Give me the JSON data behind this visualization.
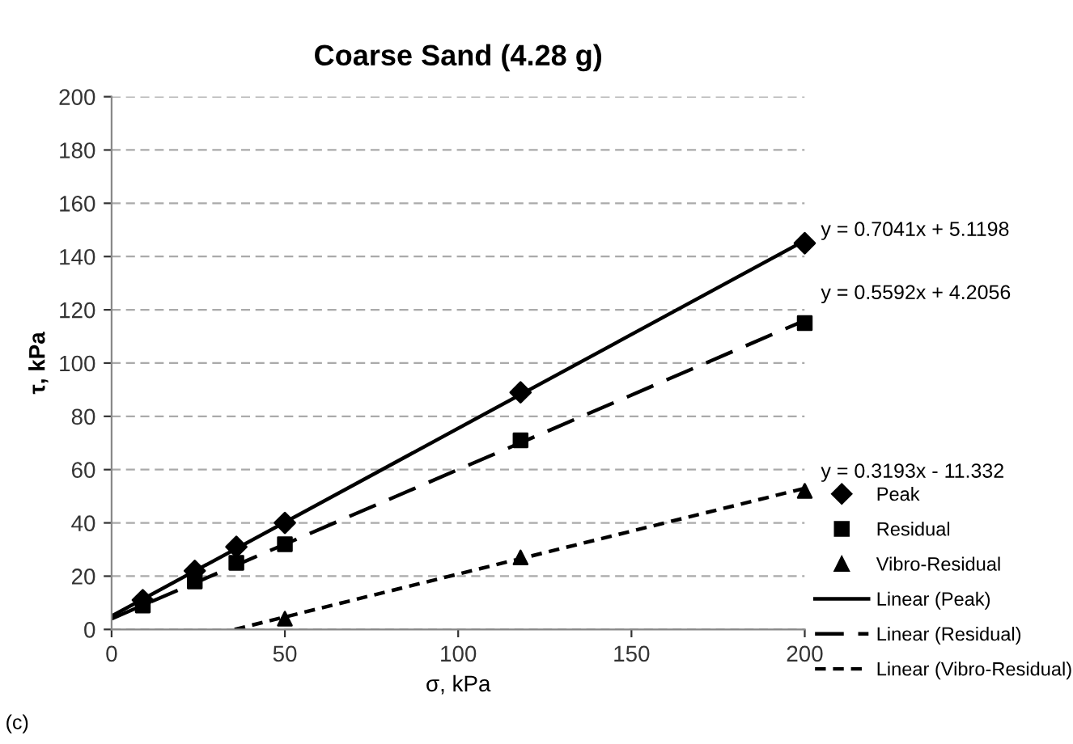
{
  "chart_data": {
    "type": "scatter",
    "title": "Coarse Sand (4.28 g)",
    "xlabel": "σ, kPa",
    "ylabel": "τ, kPa",
    "xlim": [
      0,
      200
    ],
    "xticks": [
      0,
      50,
      100,
      150,
      200
    ],
    "ylim": [
      0,
      200
    ],
    "yticks": [
      0,
      20,
      40,
      60,
      80,
      100,
      120,
      140,
      160,
      180,
      200
    ],
    "grid": "y",
    "legend": "right",
    "series": [
      {
        "name": "Peak",
        "marker": "diamond",
        "color": "#000000",
        "x": [
          9,
          24,
          36,
          50,
          118,
          200
        ],
        "values": [
          11,
          22,
          31,
          40,
          89,
          145
        ]
      },
      {
        "name": "Residual",
        "marker": "square",
        "color": "#000000",
        "x": [
          9,
          24,
          36,
          50,
          118,
          200
        ],
        "values": [
          9,
          18,
          25,
          32,
          71,
          115
        ]
      },
      {
        "name": "Vibro-Residual",
        "marker": "triangle",
        "color": "#000000",
        "x": [
          50,
          118,
          200
        ],
        "values": [
          4,
          27,
          52
        ]
      },
      {
        "name": "Linear (Peak)",
        "type": "line",
        "line_style": "solid",
        "color": "#000000",
        "x": [
          0,
          200
        ],
        "values": [
          5,
          146
        ]
      },
      {
        "name": "Linear (Residual)",
        "type": "line",
        "line_style": "dashed",
        "color": "#000000",
        "x": [
          0,
          200
        ],
        "values": [
          4,
          116
        ]
      },
      {
        "name": "Linear (Vibro-Residual)",
        "type": "line",
        "line_style": "dotted",
        "color": "#000000",
        "x": [
          35.5,
          200
        ],
        "values": [
          0,
          53
        ]
      }
    ],
    "annotations": [
      "y = 0.7041x + 5.1198",
      "y = 0.5592x + 4.2056",
      "y = 0.3193x - 11.332",
      "(c)"
    ]
  }
}
